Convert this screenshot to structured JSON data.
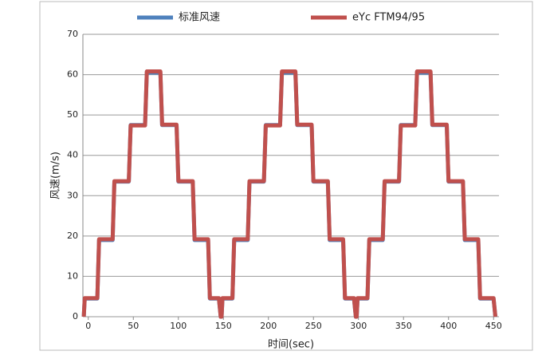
{
  "chart_data": {
    "type": "line",
    "x_label": "时间(sec)",
    "y_label": "风速(m/s)",
    "x": [
      -5,
      -4,
      10,
      12,
      27,
      29,
      45,
      47,
      63,
      65,
      80,
      82,
      98,
      100,
      116,
      118,
      133,
      135,
      145,
      147,
      148,
      149,
      160,
      162,
      177,
      179,
      195,
      197,
      213,
      215,
      230,
      232,
      248,
      250,
      266,
      268,
      283,
      285,
      295,
      297,
      298,
      299,
      310,
      312,
      327,
      329,
      345,
      347,
      363,
      365,
      380,
      382,
      398,
      400,
      416,
      418,
      433,
      435,
      450,
      452
    ],
    "series": [
      {
        "name": "标准风速",
        "color": "#4f81bd",
        "values": [
          0,
          4.5,
          4.5,
          19,
          19,
          33.5,
          33.5,
          47.5,
          47.5,
          60.5,
          60.5,
          47.5,
          47.5,
          33.5,
          33.5,
          19,
          19,
          4.5,
          4.5,
          0,
          0,
          4.5,
          4.5,
          19,
          19,
          33.5,
          33.5,
          47.5,
          47.5,
          60.5,
          60.5,
          47.5,
          47.5,
          33.5,
          33.5,
          19,
          19,
          4.5,
          4.5,
          0,
          0,
          4.5,
          4.5,
          19,
          19,
          33.5,
          33.5,
          47.5,
          47.5,
          60.5,
          60.5,
          47.5,
          47.5,
          33.5,
          33.5,
          19,
          19,
          4.5,
          4.5,
          0
        ]
      },
      {
        "name": "eYc FTM94/95",
        "color": "#c0504d",
        "values": [
          0,
          4.6,
          4.6,
          19.2,
          19.2,
          33.6,
          33.6,
          47.4,
          47.4,
          60.8,
          60.8,
          47.6,
          47.6,
          33.6,
          33.6,
          19.2,
          19.2,
          4.6,
          4.6,
          0,
          0,
          4.6,
          4.6,
          19.2,
          19.2,
          33.6,
          33.6,
          47.4,
          47.4,
          60.8,
          60.8,
          47.6,
          47.6,
          33.6,
          33.6,
          19.2,
          19.2,
          4.6,
          4.6,
          0,
          0,
          4.6,
          4.6,
          19.2,
          19.2,
          33.6,
          33.6,
          47.4,
          47.4,
          60.8,
          60.8,
          47.6,
          47.6,
          33.6,
          33.6,
          19.2,
          19.2,
          4.6,
          4.6,
          0
        ]
      }
    ],
    "xlim": [
      -6,
      456
    ],
    "xticks": [
      0,
      50,
      100,
      150,
      200,
      250,
      300,
      350,
      400,
      450
    ],
    "ylim": [
      0,
      70
    ],
    "yticks": [
      0,
      10,
      20,
      30,
      40,
      50,
      60,
      70
    ],
    "grid": true,
    "legend": "top"
  }
}
